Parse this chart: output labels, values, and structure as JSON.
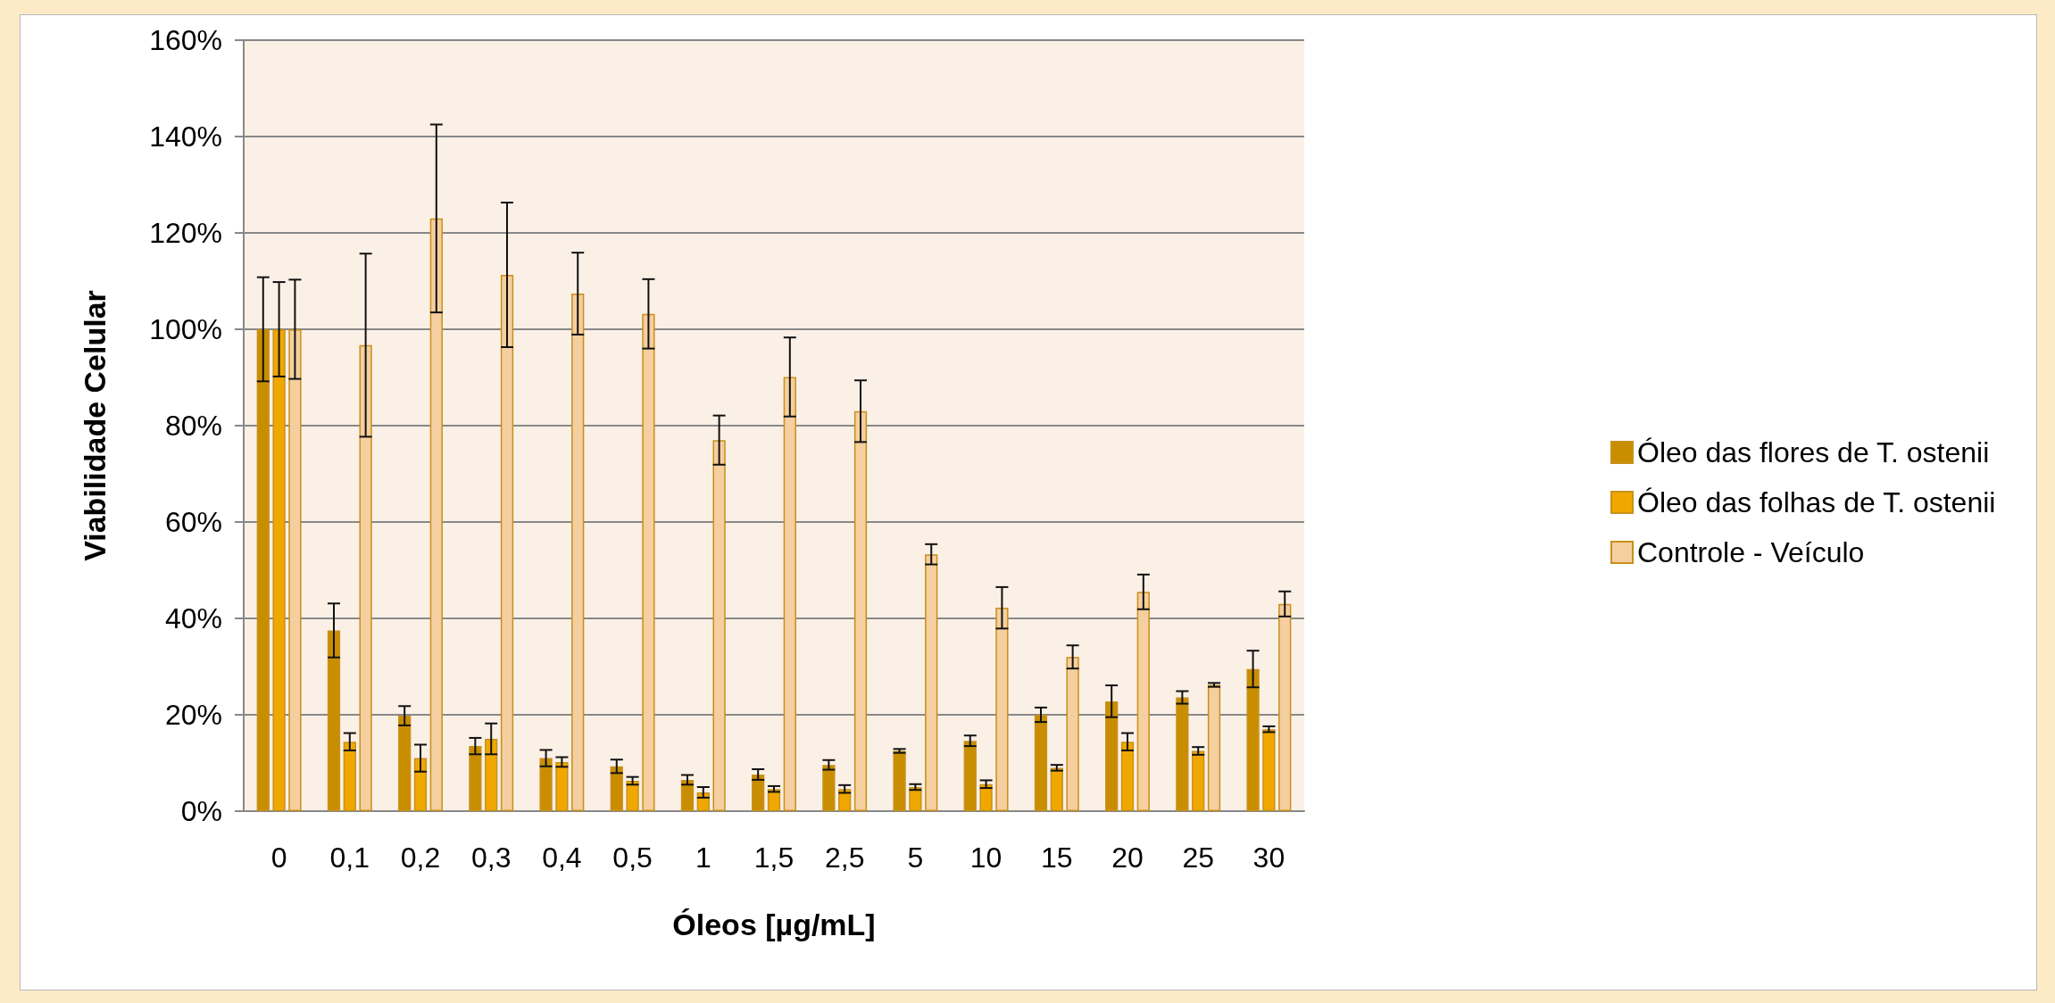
{
  "chart_data": {
    "type": "bar",
    "xlabel": "Óleos [µg/mL]",
    "ylabel": "Viabilidade Celular",
    "categories": [
      "0",
      "0,1",
      "0,2",
      "0,3",
      "0,4",
      "0,5",
      "1",
      "1,5",
      "2,5",
      "5",
      "10",
      "15",
      "20",
      "25",
      "30"
    ],
    "series": [
      {
        "name": "Óleo das flores de T. ostenii",
        "color": "#c98e00",
        "values": [
          100,
          37.5,
          19.8,
          13.5,
          11,
          9.3,
          6.5,
          7.6,
          9.6,
          12.5,
          14.6,
          20,
          22.8,
          23.6,
          29.5
        ],
        "errors": [
          10.8,
          5.6,
          2,
          1.7,
          1.7,
          1.4,
          1,
          1.1,
          1,
          0.4,
          1.1,
          1.5,
          3.3,
          1.3,
          3.8
        ]
      },
      {
        "name": "Óleo das folhas de T. ostenii",
        "color": "#f0a800",
        "values": [
          100,
          14.4,
          11,
          15,
          10.2,
          6.3,
          3.9,
          4.6,
          4.6,
          5,
          5.6,
          9,
          14.4,
          12.5,
          17
        ],
        "errors": [
          9.8,
          1.8,
          2.8,
          3.2,
          1,
          0.8,
          1.1,
          0.6,
          0.8,
          0.6,
          0.8,
          0.6,
          1.8,
          0.8,
          0.6
        ]
      },
      {
        "name": "Controle - Veículo",
        "color": "#f5cfa0",
        "values": [
          100,
          96.7,
          123,
          111.3,
          107.4,
          103.2,
          77,
          90.1,
          83,
          53.3,
          42.2,
          32,
          45.5,
          26.2,
          43
        ],
        "errors": [
          10.3,
          19,
          19.5,
          15,
          8.5,
          7.2,
          5.1,
          8.2,
          6.4,
          2.1,
          4.3,
          2.4,
          3.6,
          0.4,
          2.6
        ]
      }
    ],
    "ylim": [
      0,
      160
    ],
    "yticks": [
      {
        "value": 0,
        "label": "0%"
      },
      {
        "value": 20,
        "label": "20%"
      },
      {
        "value": 40,
        "label": "40%"
      },
      {
        "value": 60,
        "label": "60%"
      },
      {
        "value": 80,
        "label": "80%"
      },
      {
        "value": 100,
        "label": "100%"
      },
      {
        "value": 120,
        "label": "120%"
      },
      {
        "value": 140,
        "label": "140%"
      },
      {
        "value": 160,
        "label": "160%"
      }
    ],
    "grid": "y",
    "legend": "right"
  }
}
